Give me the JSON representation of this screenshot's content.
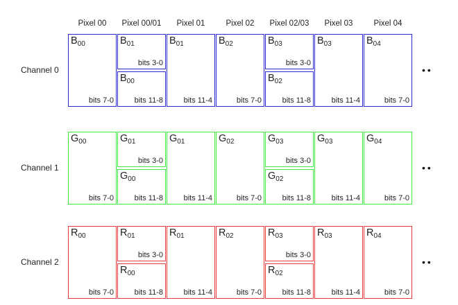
{
  "headers": [
    "Pixel 00",
    "Pixel 00/01",
    "Pixel 01",
    "Pixel 02",
    "Pixel 02/03",
    "Pixel 03",
    "Pixel 04"
  ],
  "continuation": "••",
  "channels": [
    {
      "label": "Channel 0",
      "letter": "B",
      "color": "#2a2ad0",
      "cells": [
        {
          "type": "full",
          "sub": "00",
          "bits": "bits 7-0"
        },
        {
          "type": "split",
          "top": {
            "sub": "01",
            "bits": "bits 3-0"
          },
          "bottom": {
            "sub": "00",
            "bits": "bits 11-8"
          }
        },
        {
          "type": "full",
          "sub": "01",
          "bits": "bits 11-4"
        },
        {
          "type": "full",
          "sub": "02",
          "bits": "bits 7-0"
        },
        {
          "type": "split",
          "top": {
            "sub": "03",
            "bits": "bits 3-0"
          },
          "bottom": {
            "sub": "02",
            "bits": "bits 11-8"
          }
        },
        {
          "type": "full",
          "sub": "03",
          "bits": "bits 11-4"
        },
        {
          "type": "full",
          "sub": "04",
          "bits": "bits 7-0"
        }
      ]
    },
    {
      "label": "Channel 1",
      "letter": "G",
      "color": "#3ee83e",
      "cells": [
        {
          "type": "full",
          "sub": "00",
          "bits": "bits 7-0"
        },
        {
          "type": "split",
          "top": {
            "sub": "01",
            "bits": "bits 3-0"
          },
          "bottom": {
            "sub": "00",
            "bits": "bits 11-8"
          }
        },
        {
          "type": "full",
          "sub": "01",
          "bits": "bits 11-4"
        },
        {
          "type": "full",
          "sub": "02",
          "bits": "bits 7-0"
        },
        {
          "type": "split",
          "top": {
            "sub": "03",
            "bits": "bits 3-0"
          },
          "bottom": {
            "sub": "02",
            "bits": "bits 11-8"
          }
        },
        {
          "type": "full",
          "sub": "03",
          "bits": "bits 11-4"
        },
        {
          "type": "full",
          "sub": "04",
          "bits": "bits 7-0"
        }
      ]
    },
    {
      "label": "Channel 2",
      "letter": "R",
      "color": "#e83a3a",
      "cells": [
        {
          "type": "full",
          "sub": "00",
          "bits": "bits 7-0"
        },
        {
          "type": "split",
          "top": {
            "sub": "01",
            "bits": "bits 3-0"
          },
          "bottom": {
            "sub": "00",
            "bits": "bits 11-8"
          }
        },
        {
          "type": "full",
          "sub": "01",
          "bits": "bits 11-4"
        },
        {
          "type": "full",
          "sub": "02",
          "bits": "bits 7-0"
        },
        {
          "type": "split",
          "top": {
            "sub": "03",
            "bits": "bits 3-0"
          },
          "bottom": {
            "sub": "02",
            "bits": "bits 11-8"
          }
        },
        {
          "type": "full",
          "sub": "03",
          "bits": "bits 11-4"
        },
        {
          "type": "full",
          "sub": "04",
          "bits": "bits 7-0"
        }
      ]
    }
  ]
}
